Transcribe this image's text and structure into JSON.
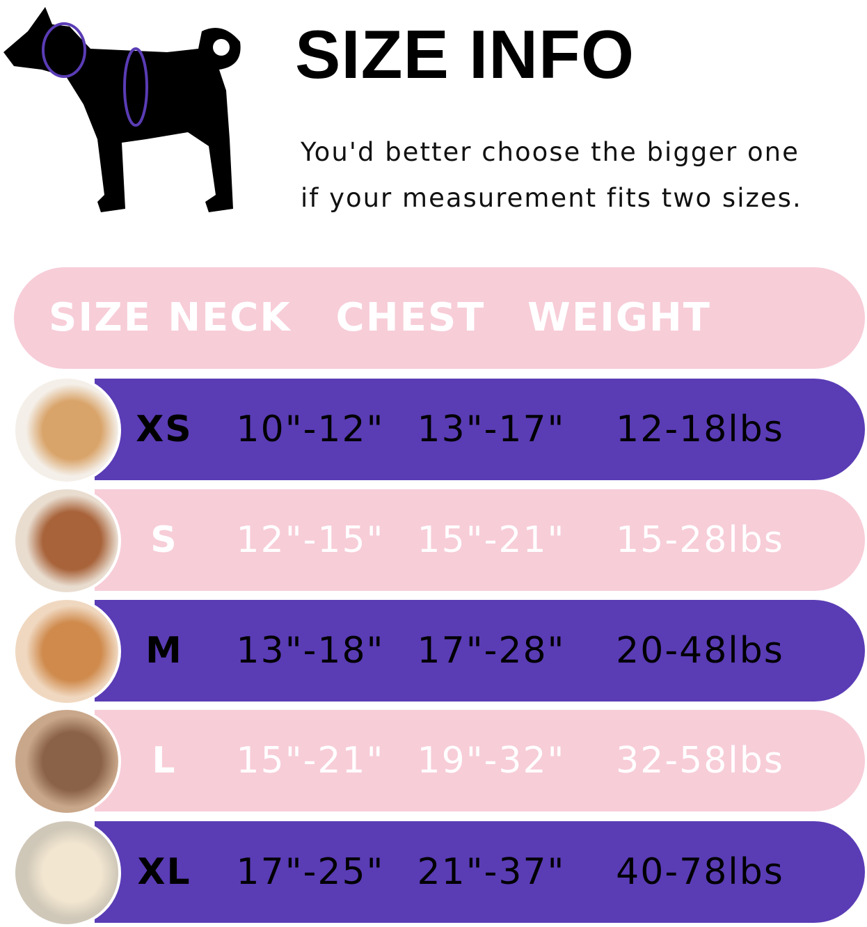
{
  "title": "SIZE INFO",
  "note_line1": "You'd better choose the bigger one",
  "note_line2": "if your measurement fits two sizes.",
  "colors": {
    "pink": "#f7cdd8",
    "purple": "#5a3cb5",
    "measure_line": "#5a3cb5"
  },
  "headers": [
    "SIZE",
    "NECK",
    "CHEST",
    "WEIGHT"
  ],
  "rows": [
    {
      "size": "XS",
      "neck": "10\"-12\"",
      "chest": "13\"-17\"",
      "weight": "12-18lbs",
      "photo": "pomeranian-photo"
    },
    {
      "size": "S",
      "neck": "12\"-15\"",
      "chest": "15\"-21\"",
      "weight": "15-28lbs",
      "photo": "poodle-photo"
    },
    {
      "size": "M",
      "neck": "13\"-18\"",
      "chest": "17\"-28\"",
      "weight": "20-48lbs",
      "photo": "shiba-photo"
    },
    {
      "size": "L",
      "neck": "15\"-21\"",
      "chest": "19\"-32\"",
      "weight": "32-58lbs",
      "photo": "french-bulldog-photo"
    },
    {
      "size": "XL",
      "neck": "17\"-25\"",
      "chest": "21\"-37\"",
      "weight": "40-78lbs",
      "photo": "labrador-photo"
    }
  ]
}
